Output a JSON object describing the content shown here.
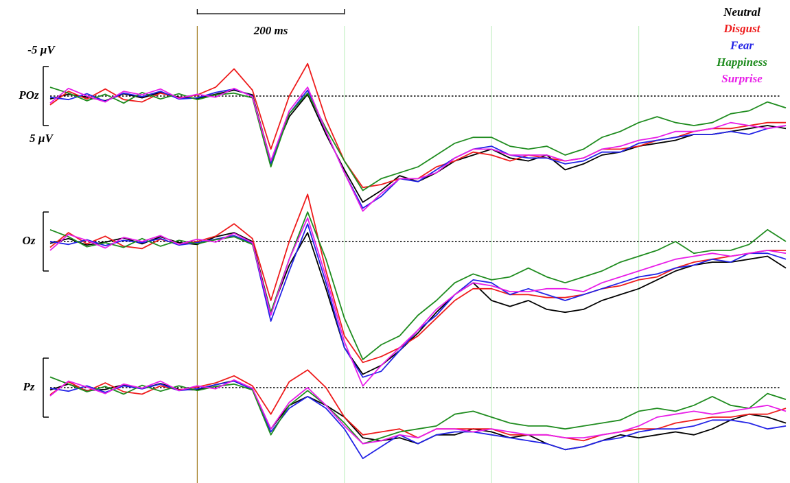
{
  "chart_data": [
    {
      "type": "line",
      "label": "POz",
      "xlim": [
        -200,
        800
      ],
      "ylim": [
        -10,
        20
      ],
      "y_inverted": true,
      "baseline": 0,
      "scale_bar_y": [
        {
          "value": -5,
          "label": "-5 µV"
        },
        {
          "value": 5,
          "label": "5 µV"
        }
      ],
      "scale_bar_x": [
        0,
        {
          "value": 200,
          "label": "200 ms"
        }
      ],
      "vlines": [
        0,
        200,
        400,
        600
      ],
      "vline_colors": [
        "#a07a1c",
        "#c6f0c6",
        "#c6f0c6",
        "#c6f0c6"
      ],
      "x": [
        -200,
        -175,
        -150,
        -125,
        -100,
        -75,
        -50,
        -25,
        0,
        25,
        50,
        75,
        100,
        125,
        150,
        175,
        200,
        225,
        250,
        275,
        300,
        325,
        350,
        375,
        400,
        425,
        450,
        475,
        500,
        525,
        550,
        575,
        600,
        625,
        650,
        675,
        700,
        725,
        750,
        775,
        800
      ],
      "series": [
        {
          "name": "Neutral",
          "color": "#000000",
          "values": [
            0.5,
            -0.3,
            0.2,
            0.8,
            -0.4,
            0.3,
            -0.6,
            0.2,
            0.4,
            -0.3,
            -1.0,
            -0.2,
            11.0,
            3.5,
            -0.3,
            6.5,
            12.5,
            18.0,
            16.0,
            13.5,
            14.5,
            13.0,
            11.0,
            10.0,
            9.0,
            10.5,
            11.0,
            10.0,
            12.5,
            11.5,
            10.0,
            9.5,
            8.5,
            8.0,
            7.5,
            6.5,
            6.5,
            6.0,
            5.5,
            5.0,
            5.5
          ]
        },
        {
          "name": "Disgust",
          "color": "#ee1c1c",
          "values": [
            1.5,
            -0.8,
            0.5,
            -1.2,
            0.6,
            1.0,
            -0.5,
            0.3,
            -0.2,
            -1.5,
            -4.6,
            -1.0,
            9.0,
            0.0,
            -5.5,
            4.0,
            11.0,
            15.5,
            15.0,
            14.0,
            14.0,
            12.0,
            11.0,
            9.5,
            10.0,
            11.0,
            10.0,
            10.5,
            11.0,
            10.5,
            9.0,
            9.0,
            8.5,
            7.5,
            7.0,
            6.0,
            5.5,
            5.5,
            5.0,
            4.5,
            4.5
          ]
        },
        {
          "name": "Fear",
          "color": "#2323e6",
          "values": [
            0.2,
            0.6,
            -0.4,
            0.9,
            -0.5,
            0.1,
            -0.8,
            0.5,
            0.3,
            -0.6,
            -1.2,
            0.0,
            11.5,
            3.0,
            -1.0,
            6.0,
            13.0,
            19.0,
            17.0,
            14.0,
            14.5,
            12.5,
            10.5,
            9.0,
            8.5,
            10.0,
            10.5,
            10.5,
            11.5,
            11.0,
            9.5,
            9.5,
            8.0,
            7.5,
            7.0,
            6.5,
            6.5,
            6.0,
            6.5,
            5.5,
            5.0
          ]
        },
        {
          "name": "Happiness",
          "color": "#1f8c1f",
          "values": [
            -1.5,
            -0.5,
            0.8,
            -0.3,
            1.2,
            -0.6,
            0.5,
            -0.4,
            0.6,
            -0.2,
            -0.5,
            0.3,
            12.0,
            3.0,
            -0.5,
            5.5,
            11.0,
            16.0,
            14.0,
            13.0,
            12.0,
            10.0,
            8.0,
            7.0,
            7.0,
            8.5,
            9.0,
            8.5,
            10.0,
            9.0,
            7.0,
            6.0,
            4.5,
            3.5,
            4.5,
            5.0,
            4.5,
            3.0,
            2.5,
            1.0,
            2.0
          ]
        },
        {
          "name": "Surprise",
          "color": "#e81ee8",
          "values": [
            1.2,
            -1.3,
            0.0,
            1.0,
            -0.8,
            -0.2,
            -1.2,
            0.4,
            -0.3,
            0.2,
            -1.3,
            0.1,
            11.0,
            2.5,
            -1.5,
            6.0,
            13.0,
            19.5,
            16.5,
            14.0,
            14.0,
            13.0,
            10.5,
            9.0,
            9.0,
            10.0,
            10.0,
            10.0,
            11.0,
            10.5,
            9.0,
            8.5,
            7.5,
            7.0,
            6.0,
            6.0,
            5.5,
            4.5,
            5.0,
            5.5,
            5.0
          ]
        }
      ]
    },
    {
      "type": "line",
      "label": "Oz",
      "xlim": [
        -200,
        800
      ],
      "ylim": [
        -10,
        20
      ],
      "y_inverted": true,
      "baseline": 0,
      "scale_bar_y": [
        -5,
        5
      ],
      "x": [
        -200,
        -175,
        -150,
        -125,
        -100,
        -75,
        -50,
        -25,
        0,
        25,
        50,
        75,
        100,
        125,
        150,
        175,
        200,
        225,
        250,
        275,
        300,
        325,
        350,
        375,
        400,
        425,
        450,
        475,
        500,
        525,
        550,
        575,
        600,
        625,
        650,
        675,
        700,
        725,
        750,
        775,
        800
      ],
      "series": [
        {
          "name": "Neutral",
          "color": "#000000",
          "values": [
            0.3,
            -0.5,
            0.6,
            0.1,
            -0.6,
            0.4,
            -0.8,
            0.2,
            0.5,
            -0.8,
            -1.5,
            0.0,
            12.0,
            4.0,
            -1.5,
            8.0,
            18.0,
            22.5,
            21.0,
            18.5,
            15.5,
            12.0,
            9.0,
            7.0,
            10.0,
            11.0,
            10.0,
            11.5,
            12.0,
            11.5,
            10.0,
            9.0,
            8.0,
            6.5,
            5.0,
            4.0,
            3.5,
            3.5,
            3.0,
            2.5,
            4.5
          ]
        },
        {
          "name": "Disgust",
          "color": "#ee1c1c",
          "values": [
            1.0,
            -1.5,
            0.4,
            -0.9,
            0.8,
            1.2,
            -0.4,
            0.5,
            0.0,
            -0.9,
            -3.0,
            -0.5,
            10.0,
            0.0,
            -8.0,
            5.0,
            16.0,
            20.5,
            19.5,
            18.0,
            16.0,
            13.0,
            10.0,
            8.0,
            8.0,
            9.0,
            9.0,
            9.5,
            9.5,
            9.0,
            8.0,
            7.5,
            6.5,
            6.0,
            4.5,
            3.5,
            3.0,
            2.5,
            2.0,
            1.5,
            1.5
          ]
        },
        {
          "name": "Fear",
          "color": "#2323e6",
          "values": [
            0.0,
            0.5,
            -0.3,
            0.7,
            -0.2,
            0.2,
            -0.5,
            0.6,
            0.2,
            -0.4,
            -1.0,
            0.3,
            13.5,
            5.0,
            -3.0,
            7.0,
            18.0,
            23.0,
            22.0,
            18.5,
            15.0,
            12.5,
            9.0,
            6.5,
            7.0,
            9.0,
            8.0,
            9.0,
            10.0,
            9.0,
            8.0,
            7.0,
            6.0,
            5.5,
            4.5,
            4.0,
            3.0,
            3.5,
            2.0,
            2.0,
            3.0
          ]
        },
        {
          "name": "Happiness",
          "color": "#1f8c1f",
          "values": [
            -2.0,
            -0.8,
            0.9,
            0.2,
            1.0,
            -0.5,
            0.8,
            -0.2,
            0.4,
            -0.3,
            -0.8,
            0.5,
            12.0,
            3.0,
            -5.0,
            3.0,
            13.0,
            20.0,
            17.5,
            16.0,
            12.5,
            10.0,
            7.0,
            5.5,
            6.5,
            6.0,
            4.5,
            6.0,
            7.0,
            6.0,
            5.0,
            3.5,
            2.5,
            1.5,
            0.0,
            2.0,
            1.5,
            1.5,
            0.5,
            -2.0,
            0.0
          ]
        },
        {
          "name": "Surprise",
          "color": "#e81ee8",
          "values": [
            1.5,
            -1.2,
            -0.2,
            1.1,
            -0.7,
            0.0,
            -1.0,
            0.5,
            -0.4,
            0.1,
            -1.4,
            0.2,
            12.5,
            3.0,
            -4.0,
            6.0,
            17.0,
            24.5,
            21.0,
            18.0,
            15.0,
            11.5,
            9.0,
            7.0,
            7.5,
            8.5,
            8.5,
            8.0,
            8.0,
            8.5,
            7.0,
            6.0,
            5.0,
            4.0,
            3.0,
            2.5,
            2.0,
            2.5,
            2.0,
            1.5,
            2.0
          ]
        }
      ]
    },
    {
      "type": "line",
      "label": "Pz",
      "xlim": [
        -200,
        800
      ],
      "ylim": [
        -10,
        20
      ],
      "y_inverted": true,
      "baseline": 0,
      "scale_bar_y": [
        -5,
        5
      ],
      "x": [
        -200,
        -175,
        -150,
        -125,
        -100,
        -75,
        -50,
        -25,
        0,
        25,
        50,
        75,
        100,
        125,
        150,
        175,
        200,
        225,
        250,
        275,
        300,
        325,
        350,
        375,
        400,
        425,
        450,
        475,
        500,
        525,
        550,
        575,
        600,
        625,
        650,
        675,
        700,
        725,
        750,
        775,
        800
      ],
      "series": [
        {
          "name": "Neutral",
          "color": "#000000",
          "values": [
            0.4,
            -0.6,
            0.5,
            0.3,
            -0.5,
            0.2,
            -0.7,
            0.3,
            0.4,
            -0.5,
            -1.2,
            0.2,
            7.0,
            3.0,
            1.5,
            3.0,
            5.0,
            8.5,
            9.0,
            8.5,
            9.5,
            8.0,
            8.0,
            7.0,
            7.5,
            8.5,
            8.0,
            9.5,
            10.5,
            10.0,
            9.0,
            8.0,
            8.5,
            8.0,
            7.5,
            8.0,
            7.0,
            5.5,
            4.5,
            5.0,
            6.0
          ]
        },
        {
          "name": "Disgust",
          "color": "#ee1c1c",
          "values": [
            1.2,
            -1.0,
            0.6,
            -0.8,
            0.7,
            1.1,
            -0.3,
            0.4,
            -0.1,
            -0.8,
            -2.0,
            -0.3,
            4.5,
            -1.0,
            -3.0,
            0.0,
            5.0,
            8.0,
            7.5,
            7.0,
            8.5,
            7.0,
            7.0,
            7.0,
            7.0,
            8.0,
            8.0,
            8.0,
            8.5,
            9.0,
            8.0,
            7.5,
            7.0,
            7.0,
            6.0,
            5.5,
            5.0,
            5.0,
            4.5,
            4.5,
            3.5
          ]
        },
        {
          "name": "Fear",
          "color": "#2323e6",
          "values": [
            0.1,
            0.6,
            -0.3,
            0.8,
            -0.3,
            0.2,
            -0.6,
            0.5,
            0.2,
            -0.5,
            -1.1,
            0.3,
            7.5,
            3.5,
            1.5,
            3.5,
            7.0,
            12.0,
            10.0,
            8.0,
            9.5,
            8.0,
            7.5,
            7.5,
            8.0,
            8.5,
            9.0,
            9.5,
            10.5,
            10.0,
            9.0,
            8.5,
            7.5,
            7.0,
            7.0,
            6.5,
            5.5,
            5.5,
            6.0,
            7.0,
            6.5
          ]
        },
        {
          "name": "Happiness",
          "color": "#1f8c1f",
          "values": [
            -1.8,
            -0.6,
            0.7,
            -0.2,
            1.1,
            -0.4,
            0.6,
            -0.3,
            0.5,
            -0.2,
            -0.6,
            0.4,
            8.0,
            3.0,
            0.5,
            3.0,
            6.0,
            9.5,
            8.5,
            7.5,
            7.0,
            6.5,
            4.5,
            4.0,
            5.0,
            6.0,
            6.5,
            6.5,
            7.0,
            6.5,
            6.0,
            5.5,
            4.0,
            3.5,
            4.0,
            3.0,
            1.5,
            3.0,
            3.5,
            1.0,
            2.0
          ]
        },
        {
          "name": "Surprise",
          "color": "#e81ee8",
          "values": [
            1.4,
            -1.1,
            -0.1,
            1.0,
            -0.6,
            0.1,
            -1.1,
            0.5,
            -0.3,
            0.2,
            -1.3,
            0.1,
            7.0,
            2.5,
            0.0,
            3.0,
            6.5,
            9.5,
            9.0,
            8.0,
            8.5,
            7.0,
            7.0,
            7.5,
            7.0,
            7.5,
            8.0,
            8.0,
            8.5,
            8.5,
            8.0,
            7.5,
            6.5,
            5.0,
            4.5,
            4.0,
            4.5,
            4.0,
            3.5,
            3.0,
            4.0
          ]
        }
      ]
    }
  ]
}
